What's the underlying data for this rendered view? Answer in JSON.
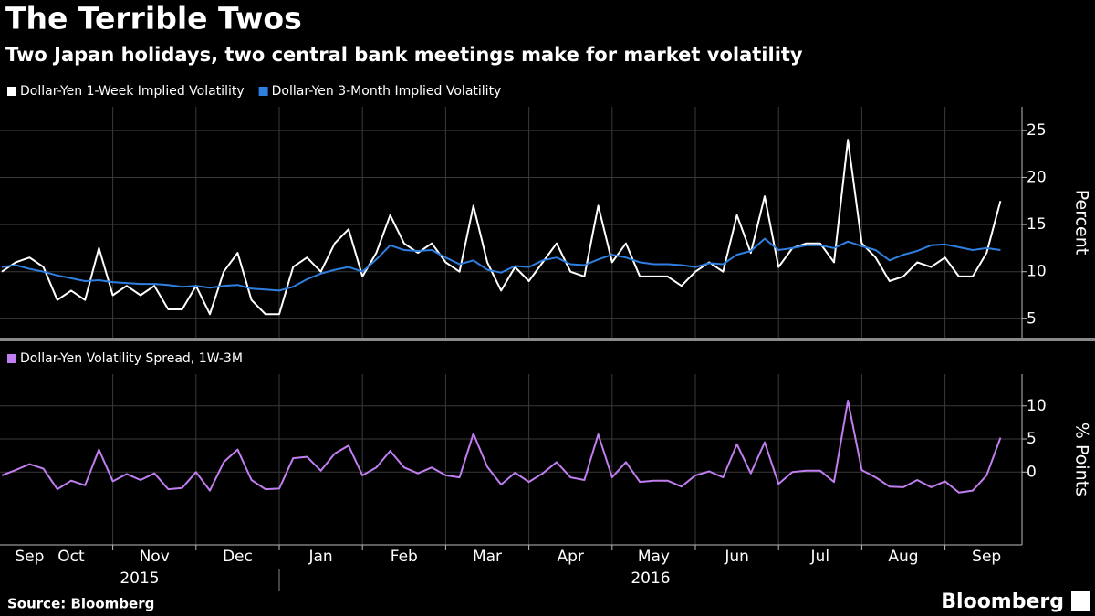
{
  "title": "The Terrible Twos",
  "subtitle": "Two Japan holidays, two central bank meetings make for market volatility",
  "source": "Source: Bloomberg",
  "brand": "Bloomberg",
  "chart_data": [
    {
      "type": "line",
      "ylabel": "Percent",
      "ylim": [
        3,
        27.5
      ],
      "yticks": [
        5,
        10,
        15,
        20,
        25
      ],
      "grid": true,
      "series": [
        {
          "name": "Dollar-Yen 1-Week Implied Volatility",
          "color": "#ffffff",
          "values": [
            10,
            11,
            11.5,
            10.5,
            7,
            8,
            7,
            12.5,
            7.5,
            8.5,
            7.5,
            8.5,
            6,
            6,
            8.5,
            5.5,
            10,
            12,
            7,
            5.5,
            5.5,
            10.5,
            11.5,
            10,
            13,
            14.5,
            9.5,
            12,
            16,
            13,
            12,
            13,
            11,
            10,
            17,
            11,
            8,
            10.5,
            9,
            11,
            13,
            10,
            9.5,
            17,
            11,
            13,
            9.5,
            9.5,
            9.5,
            8.5,
            10,
            11,
            10,
            16,
            12,
            18,
            10.5,
            12.5,
            13,
            13,
            11,
            24,
            13,
            11.5,
            9,
            9.5,
            11,
            10.5,
            11.5,
            9.5,
            9.5,
            12,
            17.5
          ]
        },
        {
          "name": "Dollar-Yen 3-Month Implied Volatility",
          "color": "#2f7fe0",
          "values": [
            10.5,
            10.7,
            10.3,
            10,
            9.6,
            9.3,
            9.0,
            9.1,
            8.9,
            8.8,
            8.7,
            8.7,
            8.6,
            8.4,
            8.5,
            8.3,
            8.5,
            8.6,
            8.2,
            8.1,
            8.0,
            8.4,
            9.2,
            9.8,
            10.2,
            10.5,
            10.0,
            11.3,
            12.8,
            12.3,
            12.2,
            12.3,
            11.5,
            10.8,
            11.2,
            10.2,
            9.9,
            10.6,
            10.5,
            11.2,
            11.5,
            10.8,
            10.7,
            11.3,
            11.8,
            11.5,
            11.0,
            10.8,
            10.8,
            10.7,
            10.5,
            10.9,
            10.8,
            11.8,
            12.2,
            13.5,
            12.3,
            12.5,
            12.8,
            12.8,
            12.5,
            13.2,
            12.7,
            12.3,
            11.2,
            11.8,
            12.2,
            12.8,
            12.9,
            12.6,
            12.3,
            12.5,
            12.3
          ]
        }
      ]
    },
    {
      "type": "line",
      "ylabel": "% Points",
      "ylim": [
        -11,
        14.8
      ],
      "yticks": [
        0,
        5,
        10
      ],
      "grid": true,
      "categories": [
        null,
        null,
        "Sep",
        null,
        null,
        "Oct",
        null,
        null,
        null,
        null,
        null,
        "Nov",
        null,
        null,
        null,
        null,
        null,
        "Dec",
        null,
        null,
        null,
        null,
        null,
        "Jan",
        null,
        null,
        null,
        null,
        null,
        "Feb",
        null,
        null,
        null,
        null,
        null,
        "Mar",
        null,
        null,
        null,
        null,
        null,
        "Apr",
        null,
        null,
        null,
        null,
        null,
        "May",
        null,
        null,
        null,
        null,
        null,
        "Jun",
        null,
        null,
        null,
        null,
        null,
        "Jul",
        null,
        null,
        null,
        null,
        null,
        "Aug",
        null,
        null,
        null,
        null,
        null,
        "Sep",
        null
      ],
      "x_groups": [
        "2015",
        "2016"
      ],
      "series": [
        {
          "name": "Dollar-Yen Volatility Spread, 1W-3M",
          "color": "#c17ef0",
          "values": [
            -0.5,
            0.3,
            1.2,
            0.5,
            -2.6,
            -1.3,
            -2,
            3.4,
            -1.4,
            -0.3,
            -1.2,
            -0.2,
            -2.6,
            -2.4,
            0,
            -2.8,
            1.5,
            3.4,
            -1.2,
            -2.6,
            -2.5,
            2.1,
            2.3,
            0.2,
            2.8,
            4,
            -0.5,
            0.7,
            3.2,
            0.7,
            -0.2,
            0.7,
            -0.5,
            -0.8,
            5.8,
            0.8,
            -1.9,
            -0.1,
            -1.5,
            -0.2,
            1.5,
            -0.8,
            -1.2,
            5.7,
            -0.8,
            1.5,
            -1.5,
            -1.3,
            -1.3,
            -2.2,
            -0.5,
            0.1,
            -0.8,
            4.2,
            -0.2,
            4.5,
            -1.8,
            0,
            0.2,
            0.2,
            -1.5,
            10.8,
            0.3,
            -0.8,
            -2.2,
            -2.3,
            -1.2,
            -2.3,
            -1.4,
            -3.1,
            -2.8,
            -0.5,
            5.2
          ]
        }
      ]
    }
  ]
}
